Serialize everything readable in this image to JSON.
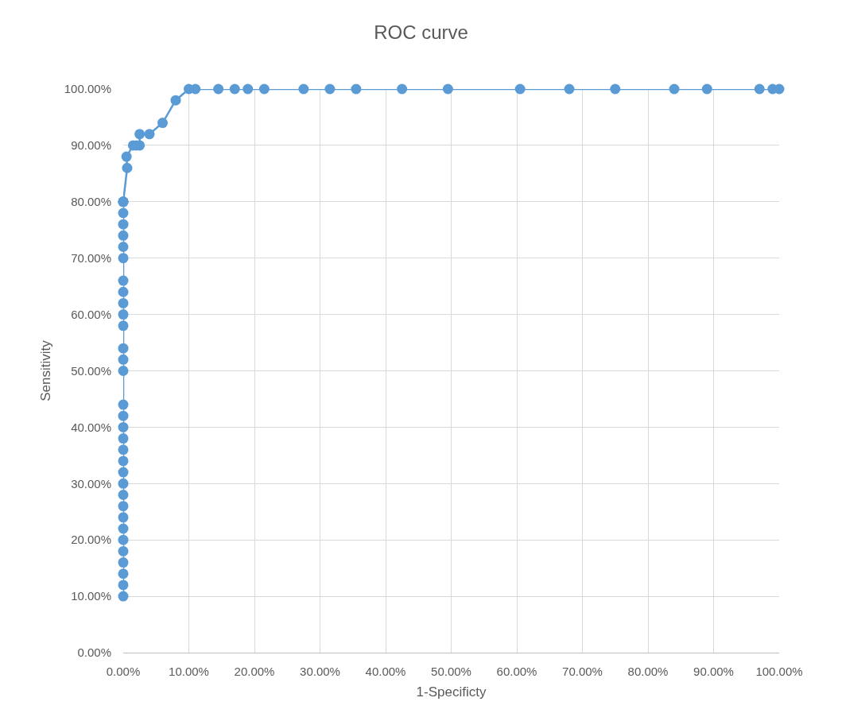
{
  "chart_data": {
    "type": "line",
    "title": "ROC curve",
    "xlabel": "1-Specificty",
    "ylabel": "Sensitivity",
    "x": [
      0,
      0,
      0,
      0,
      0,
      0,
      0,
      0,
      0,
      0,
      0,
      0,
      0,
      0,
      0,
      0,
      0,
      0,
      0,
      0,
      0,
      0,
      0,
      0,
      0,
      0,
      0,
      0,
      0,
      0,
      0,
      0,
      0,
      0,
      0.6,
      0.5,
      1.5,
      2,
      2.5,
      2.5,
      4,
      6,
      8,
      10,
      11,
      14.5,
      17,
      19,
      21.5,
      27.5,
      31.5,
      35.5,
      42.5,
      49.5,
      60.5,
      68,
      75,
      84,
      89,
      97,
      99,
      100
    ],
    "series": [
      {
        "color": "#5b9bd5",
        "values": [
          10,
          12,
          14,
          16,
          18,
          20,
          22,
          24,
          26,
          28,
          30,
          32,
          34,
          36,
          38,
          40,
          42,
          44,
          50,
          52,
          54,
          58,
          60,
          62,
          64,
          66,
          70,
          72,
          74,
          76,
          78,
          80,
          80,
          80,
          86,
          88,
          90,
          90,
          90,
          92,
          92,
          94,
          98,
          100,
          100,
          100,
          100,
          100,
          100,
          100,
          100,
          100,
          100,
          100,
          100,
          100,
          100,
          100,
          100,
          100,
          100,
          100
        ]
      }
    ],
    "xlim": [
      0,
      100
    ],
    "xticks": [
      {
        "value": 0,
        "label": "0.00%"
      },
      {
        "value": 10,
        "label": "10.00%"
      },
      {
        "value": 20,
        "label": "20.00%"
      },
      {
        "value": 30,
        "label": "30.00%"
      },
      {
        "value": 40,
        "label": "40.00%"
      },
      {
        "value": 50,
        "label": "50.00%"
      },
      {
        "value": 60,
        "label": "60.00%"
      },
      {
        "value": 70,
        "label": "70.00%"
      },
      {
        "value": 80,
        "label": "80.00%"
      },
      {
        "value": 90,
        "label": "90.00%"
      },
      {
        "value": 100,
        "label": "100.00%"
      }
    ],
    "ylim": [
      0,
      100
    ],
    "yticks": [
      {
        "value": 0,
        "label": "0.00%"
      },
      {
        "value": 10,
        "label": "10.00%"
      },
      {
        "value": 20,
        "label": "20.00%"
      },
      {
        "value": 30,
        "label": "30.00%"
      },
      {
        "value": 40,
        "label": "40.00%"
      },
      {
        "value": 50,
        "label": "50.00%"
      },
      {
        "value": 60,
        "label": "60.00%"
      },
      {
        "value": 70,
        "label": "70.00%"
      },
      {
        "value": 80,
        "label": "80.00%"
      },
      {
        "value": 90,
        "label": "90.00%"
      },
      {
        "value": 100,
        "label": "100.00%"
      }
    ],
    "grid": true,
    "marker": "circle",
    "line_style": "solid"
  }
}
